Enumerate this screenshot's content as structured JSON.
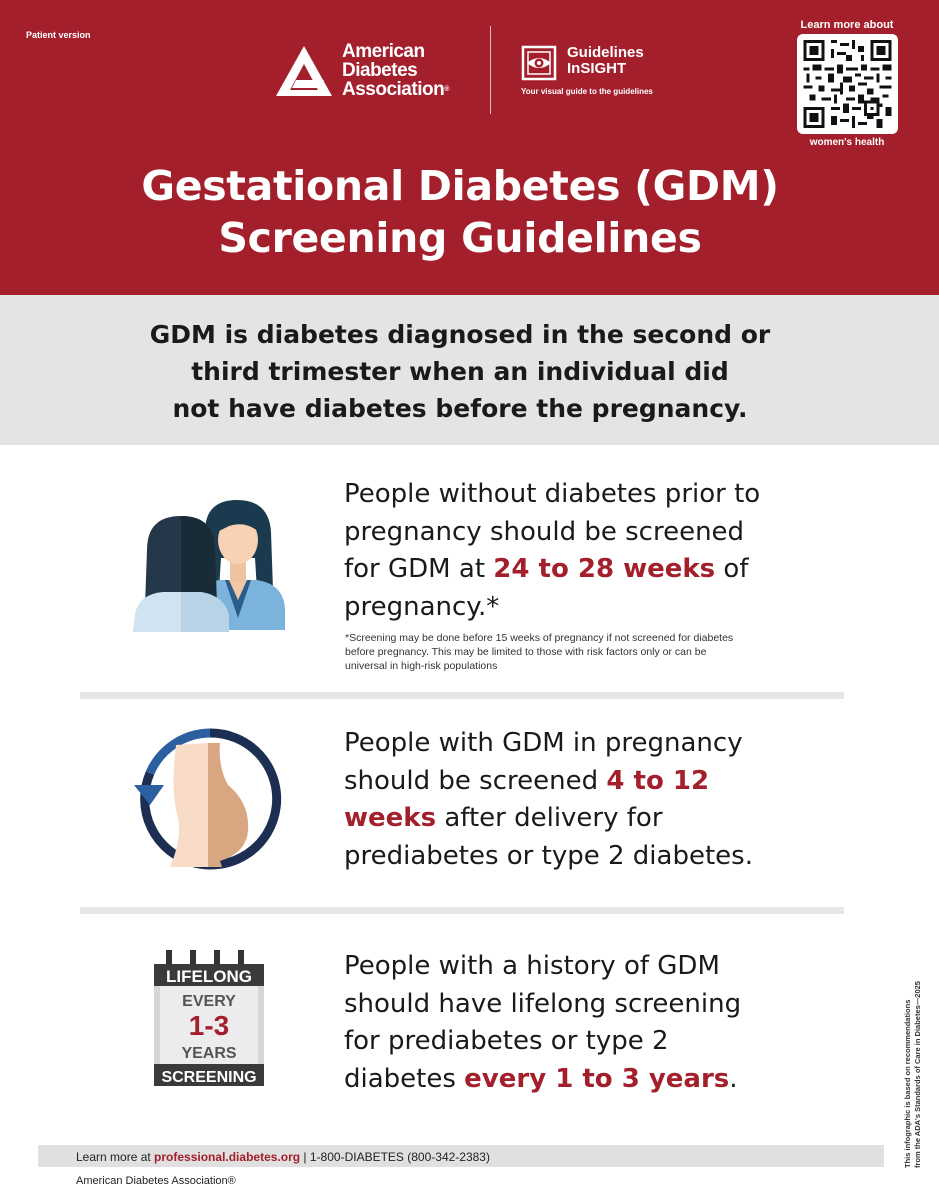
{
  "header": {
    "patient_version": "Patient version",
    "ada_line1": "American",
    "ada_line2": "Diabetes",
    "ada_line3": "Association",
    "ada_reg": "®",
    "insight_line1": "Guidelines",
    "insight_line2": "InSIGHT",
    "insight_tagline": "Your visual guide to the guidelines",
    "qr_top": "Learn more about",
    "qr_bottom": "women's health",
    "title_line1": "Gestational Diabetes (GDM)",
    "title_line2": "Screening Guidelines",
    "colors": {
      "brand_red": "#a41f2c"
    }
  },
  "definition": {
    "line1": "GDM is diabetes diagnosed in the second or",
    "line2": "third trimester when an individual did",
    "line3": "not have diabetes before the pregnancy."
  },
  "sections": [
    {
      "icon": "two-women-icon",
      "line1": "People without diabetes prior to",
      "line2": "pregnancy should be screened",
      "line3_pre": "for GDM at ",
      "line3_hl": "24 to 28 weeks",
      "line3_post": " of",
      "line4": "pregnancy.*",
      "footnote_line1": "*Screening may be done before 15 weeks of pregnancy if not screened for diabetes",
      "footnote_line2": "before pregnancy. This may be limited to those with risk factors only or can be",
      "footnote_line3": "universal in high-risk populations"
    },
    {
      "icon": "pregnancy-cycle-icon",
      "line1": "People with GDM in pregnancy",
      "line2_pre": "should be screened ",
      "line2_hl": "4 to 12",
      "line3_hl": "weeks",
      "line3_post": " after delivery for",
      "line4": "prediabetes or type 2 diabetes."
    },
    {
      "icon": "calendar-icon",
      "cal_top": "LIFELONG",
      "cal_every": "EVERY",
      "cal_num": "1-3",
      "cal_years": "YEARS",
      "cal_bottom": "SCREENING",
      "line1": "People with a history of GDM",
      "line2": "should have lifelong screening",
      "line3": "for prediabetes or type 2",
      "line4_pre": "diabetes ",
      "line4_hl": "every 1 to 3 years",
      "line4_post": "."
    }
  ],
  "side_note": {
    "line1": "This infographic is based on recommendations",
    "line2": "from the ADA's Standards of Care in Diabetes—2025"
  },
  "footer": {
    "learn_more": "Learn more at ",
    "link": "professional.diabetes.org",
    "phone": " | 1-800-DIABETES (800-342-2383)",
    "org": "American Diabetes Association®"
  }
}
